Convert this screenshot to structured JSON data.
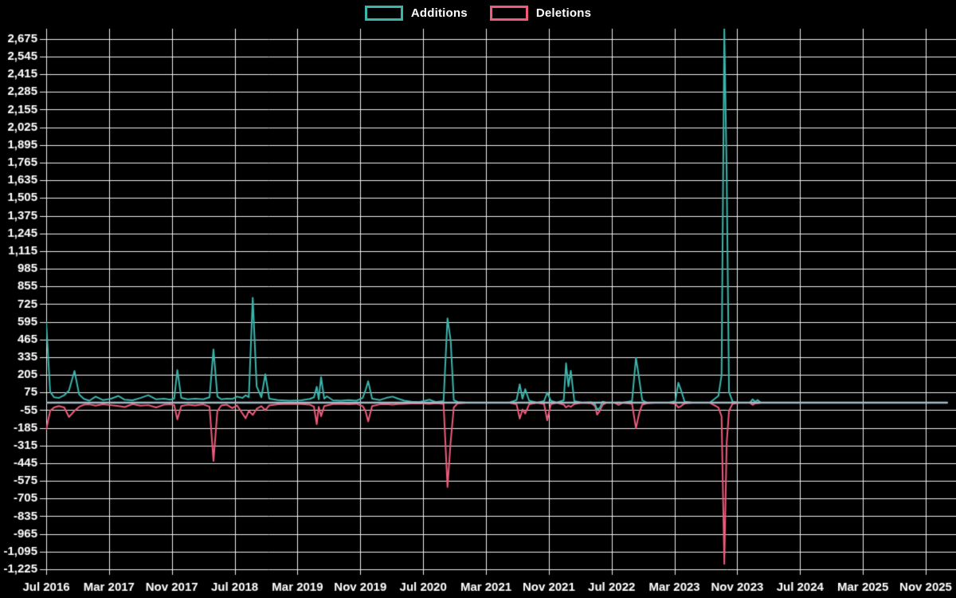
{
  "legend": {
    "additions_label": "Additions",
    "deletions_label": "Deletions"
  },
  "colors": {
    "background": "#000000",
    "grid": "#f0f0f0",
    "axis_text": "#ffffff",
    "additions": "#3cb5ad",
    "deletions": "#ee5c7b",
    "zero_line": "#a4bbc5"
  },
  "chart_data": {
    "type": "line",
    "title": "",
    "xlabel": "",
    "ylabel": "",
    "legend_position": "top-center",
    "grid": true,
    "x_axis": {
      "unit": "months_since_jul_2016",
      "range_months": [
        0,
        115.85
      ],
      "tick_months": [
        0,
        8,
        16,
        24,
        32,
        40,
        48,
        56,
        64,
        72,
        80,
        88,
        96,
        104,
        112
      ],
      "tick_labels": [
        "Jul 2016",
        "Mar 2017",
        "Nov 2017",
        "Jul 2018",
        "Mar 2019",
        "Nov 2019",
        "Jul 2020",
        "Mar 2021",
        "Nov 2021",
        "Jul 2022",
        "Mar 2023",
        "Nov 2023",
        "Jul 2024",
        "Mar 2025",
        "Nov 2025"
      ]
    },
    "y_axis": {
      "min": -1225,
      "max": 2750,
      "tick_step": 130,
      "ticks": [
        -1225,
        -1095,
        -965,
        -835,
        -705,
        -575,
        -445,
        -315,
        -185,
        -55,
        75,
        205,
        335,
        465,
        595,
        725,
        855,
        985,
        1115,
        1245,
        1375,
        1505,
        1635,
        1765,
        1895,
        2025,
        2155,
        2285,
        2415,
        2545,
        2675
      ]
    },
    "zero_line": {
      "value": 0,
      "x_start_months": 0,
      "x_end_months": 114.8
    },
    "series_names": [
      "Additions",
      "Deletions"
    ],
    "points_format": [
      "months_since_jul_2016",
      "additions",
      "deletions"
    ],
    "points": [
      [
        0,
        595,
        -200
      ],
      [
        0.5,
        80,
        -60
      ],
      [
        1,
        40,
        -35
      ],
      [
        1.6,
        35,
        -25
      ],
      [
        2.3,
        55,
        -35
      ],
      [
        2.9,
        90,
        -105
      ],
      [
        3.6,
        233,
        -60
      ],
      [
        4.2,
        60,
        -30
      ],
      [
        4.8,
        28,
        -15
      ],
      [
        5.5,
        15,
        -12
      ],
      [
        6.3,
        45,
        -22
      ],
      [
        7.2,
        20,
        -12
      ],
      [
        8.2,
        28,
        -18
      ],
      [
        9.2,
        50,
        -25
      ],
      [
        10,
        22,
        -32
      ],
      [
        11,
        18,
        -10
      ],
      [
        12,
        35,
        -22
      ],
      [
        13,
        55,
        -18
      ],
      [
        14,
        25,
        -35
      ],
      [
        15,
        30,
        -15
      ],
      [
        15.8,
        22,
        -12
      ],
      [
        16.3,
        30,
        -18
      ],
      [
        16.7,
        240,
        -123
      ],
      [
        17.2,
        35,
        -25
      ],
      [
        18,
        25,
        -15
      ],
      [
        19,
        30,
        -20
      ],
      [
        20,
        25,
        -12
      ],
      [
        20.8,
        40,
        -30
      ],
      [
        21.3,
        391,
        -428
      ],
      [
        21.8,
        45,
        -60
      ],
      [
        22.3,
        25,
        -20
      ],
      [
        23,
        30,
        -15
      ],
      [
        23.7,
        28,
        -40
      ],
      [
        24.3,
        45,
        -20
      ],
      [
        25,
        35,
        -80
      ],
      [
        25.4,
        55,
        -115
      ],
      [
        25.8,
        40,
        -60
      ],
      [
        26.3,
        772,
        -90
      ],
      [
        26.8,
        120,
        -45
      ],
      [
        27.4,
        40,
        -25
      ],
      [
        27.9,
        210,
        -55
      ],
      [
        28.4,
        30,
        -20
      ],
      [
        29.5,
        20,
        -12
      ],
      [
        31,
        15,
        -8
      ],
      [
        32.5,
        18,
        -10
      ],
      [
        33.6,
        28,
        -15
      ],
      [
        34.1,
        40,
        -30
      ],
      [
        34.45,
        117,
        -158
      ],
      [
        34.7,
        25,
        -30
      ],
      [
        35,
        188,
        -100
      ],
      [
        35.4,
        30,
        -25
      ],
      [
        35.75,
        47,
        -20
      ],
      [
        36.5,
        18,
        -10
      ],
      [
        37.5,
        15,
        -8
      ],
      [
        38.5,
        20,
        -12
      ],
      [
        39.5,
        15,
        -8
      ],
      [
        40.3,
        35,
        -25
      ],
      [
        40.65,
        90,
        -60
      ],
      [
        41,
        158,
        -138
      ],
      [
        41.5,
        30,
        -25
      ],
      [
        42.5,
        20,
        -12
      ],
      [
        43.3,
        35,
        -10
      ],
      [
        44.1,
        45,
        -14
      ],
      [
        44.8,
        30,
        -10
      ],
      [
        45.6,
        15,
        -8
      ],
      [
        46.5,
        8,
        -5
      ],
      [
        47.5,
        5,
        -4
      ],
      [
        48.8,
        22,
        -8
      ],
      [
        49.6,
        5,
        -4
      ],
      [
        50.6,
        12,
        -8
      ],
      [
        51.1,
        620,
        -620
      ],
      [
        51.5,
        460,
        -290
      ],
      [
        51.9,
        20,
        -35
      ],
      [
        52.4,
        5,
        -5
      ],
      [
        53.5,
        0,
        0
      ],
      [
        56,
        0,
        0
      ],
      [
        59,
        0,
        0
      ],
      [
        59.9,
        20,
        -12
      ],
      [
        60.3,
        135,
        -117
      ],
      [
        60.65,
        30,
        -50
      ],
      [
        61,
        100,
        -80
      ],
      [
        61.5,
        15,
        -12
      ],
      [
        62.5,
        0,
        0
      ],
      [
        63.4,
        12,
        -10
      ],
      [
        63.8,
        75,
        -130
      ],
      [
        64.25,
        15,
        -12
      ],
      [
        65,
        0,
        0
      ],
      [
        65.9,
        18,
        -14
      ],
      [
        66.2,
        290,
        -35
      ],
      [
        66.5,
        120,
        -22
      ],
      [
        66.8,
        235,
        -30
      ],
      [
        67.25,
        12,
        -10
      ],
      [
        68.2,
        0,
        0
      ],
      [
        69.4,
        4,
        -4
      ],
      [
        69.9,
        -12,
        -25
      ],
      [
        70.15,
        -50,
        -88
      ],
      [
        70.5,
        -38,
        -58
      ],
      [
        70.85,
        8,
        -16
      ],
      [
        71.3,
        0,
        0
      ],
      [
        72.4,
        0,
        0
      ],
      [
        72.9,
        2,
        -16
      ],
      [
        73.4,
        0,
        0
      ],
      [
        74.6,
        12,
        -8
      ],
      [
        75.1,
        330,
        -188
      ],
      [
        75.5,
        180,
        -80
      ],
      [
        75.9,
        18,
        -14
      ],
      [
        76.5,
        0,
        -4
      ],
      [
        77.5,
        0,
        0
      ],
      [
        79.3,
        0,
        0
      ],
      [
        80.1,
        10,
        -8
      ],
      [
        80.5,
        147,
        -35
      ],
      [
        80.85,
        90,
        -25
      ],
      [
        81.3,
        8,
        -5
      ],
      [
        82.3,
        0,
        0
      ],
      [
        84.5,
        0,
        0
      ],
      [
        85.6,
        50,
        -35
      ],
      [
        86,
        200,
        -100
      ],
      [
        86.35,
        2750,
        -1185
      ],
      [
        86.65,
        1690,
        -300
      ],
      [
        86.95,
        80,
        -60
      ],
      [
        87.4,
        8,
        -8
      ],
      [
        88.3,
        0,
        0
      ],
      [
        89.6,
        0,
        0
      ],
      [
        89.95,
        25,
        -16
      ],
      [
        90.3,
        6,
        -4
      ],
      [
        90.6,
        20,
        -4
      ],
      [
        91,
        0,
        0
      ],
      [
        93,
        0,
        0
      ],
      [
        98,
        0,
        0
      ],
      [
        104,
        0,
        0
      ],
      [
        110,
        0,
        0
      ],
      [
        114.8,
        0,
        0
      ]
    ]
  }
}
